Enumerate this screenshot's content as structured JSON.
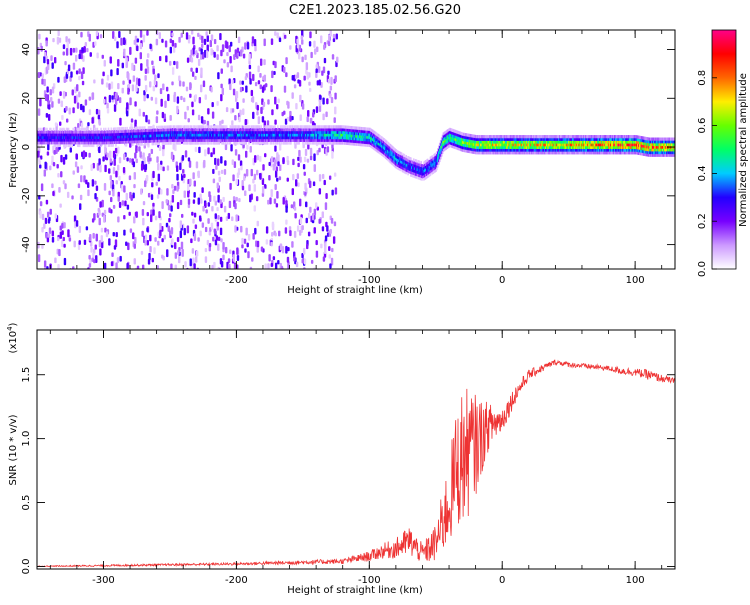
{
  "figure_title": "C2E1.2023.185.02.56.G20",
  "chart_data": [
    {
      "type": "heatmap",
      "title": "",
      "xlabel": "Height of straight line (km)",
      "ylabel": "Frequency (Hz)",
      "xlim": [
        -350,
        130
      ],
      "ylim": [
        -50,
        48
      ],
      "xticks": [
        -300,
        -200,
        -100,
        0,
        100
      ],
      "yticks": [
        -40,
        -20,
        0,
        20,
        40
      ],
      "colorbar": {
        "label": "Normalized spectral amplitude",
        "range": [
          0.0,
          1.0
        ],
        "ticks": [
          "0.0",
          "0.2",
          "0.4",
          "0.6",
          "0.8"
        ],
        "colors": [
          "#ffffff",
          "#cc99ff",
          "#7700ff",
          "#2200ff",
          "#00ccff",
          "#00ff66",
          "#66ff00",
          "#ffee00",
          "#ff6600",
          "#ff0000",
          "#ff0088"
        ]
      },
      "ridge": {
        "x": [
          -350,
          -300,
          -250,
          -200,
          -150,
          -120,
          -100,
          -90,
          -80,
          -70,
          -60,
          -50,
          -45,
          -40,
          -35,
          -30,
          -20,
          0,
          20,
          50,
          80,
          100,
          110,
          130
        ],
        "y": [
          4,
          4,
          5,
          5,
          5,
          5,
          4,
          0,
          -5,
          -8,
          -10,
          -6,
          2,
          4,
          3,
          2,
          1,
          1,
          1,
          1,
          1,
          1,
          0,
          0
        ],
        "amplitude": [
          0.3,
          0.3,
          0.35,
          0.35,
          0.35,
          0.5,
          0.45,
          0.4,
          0.4,
          0.35,
          0.35,
          0.4,
          0.55,
          0.5,
          0.55,
          0.6,
          0.65,
          0.7,
          0.7,
          0.72,
          0.8,
          0.85,
          0.8,
          0.75
        ]
      }
    },
    {
      "type": "line",
      "title": "",
      "xlabel": "Height of straight line (km)",
      "ylabel": "SNR (10 * v/v)",
      "multiplier": "(x10",
      "multiplier_exp": "4",
      "multiplier_close": ")",
      "xlim": [
        -350,
        130
      ],
      "ylim": [
        -0.02,
        1.85
      ],
      "xticks": [
        -300,
        -200,
        -100,
        0,
        100
      ],
      "yticks": [
        "0.0",
        "0.5",
        "1.0",
        "1.5"
      ],
      "color": "#ee3333",
      "envelope": {
        "x": [
          -350,
          -200,
          -120,
          -100,
          -90,
          -80,
          -70,
          -60,
          -50,
          -40,
          -35,
          -30,
          -25,
          -20,
          -10,
          0,
          10,
          20,
          30,
          40,
          50,
          60,
          80,
          90,
          100,
          110,
          120,
          130
        ],
        "y": [
          0.0,
          0.02,
          0.04,
          0.08,
          0.12,
          0.14,
          0.2,
          0.1,
          0.18,
          0.5,
          0.75,
          0.85,
          0.9,
          0.95,
          1.1,
          1.15,
          1.35,
          1.5,
          1.55,
          1.6,
          1.58,
          1.57,
          1.55,
          1.53,
          1.52,
          1.5,
          1.47,
          1.45
        ],
        "noise": [
          0.005,
          0.01,
          0.02,
          0.04,
          0.06,
          0.08,
          0.12,
          0.08,
          0.15,
          0.35,
          0.45,
          0.55,
          0.5,
          0.4,
          0.18,
          0.1,
          0.07,
          0.04,
          0.03,
          0.02,
          0.02,
          0.02,
          0.02,
          0.03,
          0.03,
          0.04,
          0.03,
          0.02
        ]
      }
    }
  ]
}
